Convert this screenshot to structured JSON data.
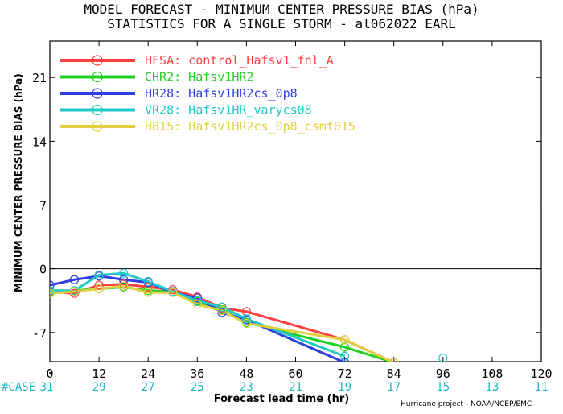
{
  "chart_data": {
    "type": "line",
    "title": "MODEL FORECAST - MINIMUM CENTER PRESSURE BIAS (hPa)",
    "subtitle": "STATISTICS FOR A SINGLE STORM - al062022_EARL",
    "xlabel": "Forecast lead time (hr)",
    "ylabel": "MINIMUM CENTER PRESSURE BIAS (hPa)",
    "xlim": [
      0,
      120
    ],
    "ylim": [
      -10.2,
      25
    ],
    "x_ticks": [
      0,
      12,
      24,
      36,
      48,
      60,
      72,
      84,
      96,
      108,
      120
    ],
    "y_ticks": [
      21,
      14,
      7,
      0,
      -7
    ],
    "zero_line": true,
    "grid": false,
    "legend_position": "top-left",
    "case_label": "#CASE",
    "case_counts": [
      31,
      29,
      27,
      25,
      23,
      21,
      19,
      17,
      15,
      13,
      11
    ],
    "credit": "Hurricane project - NOAA/NCEP/EMC",
    "series": [
      {
        "name": "HFSA: control_Hafsv1_fnl_A",
        "color": "#ff4040",
        "x": [
          0,
          6,
          12,
          18,
          24,
          30,
          36,
          42,
          48,
          72,
          84
        ],
        "y": [
          -2.5,
          -2.7,
          -1.8,
          -1.7,
          -2.0,
          -2.3,
          -3.1,
          -4.3,
          -4.7,
          -7.8,
          -10.3
        ]
      },
      {
        "name": "CHR2: Hafsv1HR2",
        "color": "#20d020",
        "x": [
          0,
          6,
          12,
          18,
          24,
          30,
          36,
          42,
          48,
          72,
          84
        ],
        "y": [
          -2.6,
          -2.4,
          -2.2,
          -2.0,
          -2.4,
          -2.5,
          -3.6,
          -4.5,
          -5.9,
          -8.6,
          -10.3
        ]
      },
      {
        "name": "HR28: Hafsv1HR2cs_0p8",
        "color": "#3040e0",
        "x": [
          0,
          6,
          12,
          18,
          24,
          30,
          36,
          42,
          48,
          72
        ],
        "y": [
          -1.8,
          -1.2,
          -0.8,
          -1.2,
          -1.5,
          -2.6,
          -3.2,
          -4.8,
          -5.6,
          -10.3
        ]
      },
      {
        "name": "VR28: Hafsv1HR_varycs08",
        "color": "#20c8c8",
        "x": [
          0,
          6,
          12,
          18,
          24,
          30,
          36,
          42,
          48,
          72,
          96
        ],
        "y": [
          -2.4,
          -2.4,
          -0.7,
          -0.5,
          -1.4,
          -2.5,
          -3.5,
          -4.2,
          -5.5,
          -9.6,
          -9.8
        ]
      },
      {
        "name": "H815: Hafsv1HR2cs_0p8_csmf015",
        "color": "#e0d040",
        "x": [
          0,
          6,
          12,
          18,
          24,
          30,
          36,
          42,
          48,
          72,
          84
        ],
        "y": [
          -2.7,
          -2.5,
          -2.2,
          -1.9,
          -2.6,
          -2.6,
          -3.9,
          -4.6,
          -6.0,
          -7.8,
          -10.3
        ]
      }
    ]
  }
}
